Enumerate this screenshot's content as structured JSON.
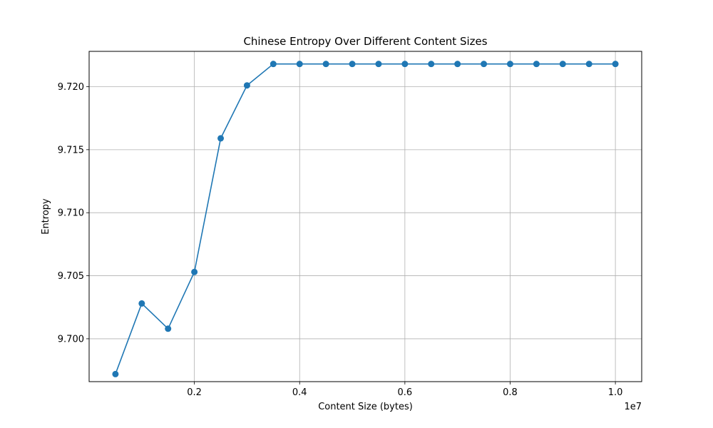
{
  "chart_data": {
    "type": "line",
    "title": "Chinese Entropy Over Different Content Sizes",
    "xlabel": "Content Size (bytes)",
    "ylabel": "Entropy",
    "x_offset_label": "1e7",
    "x_scale_factor": 10000000,
    "xlim": [
      0,
      10500000
    ],
    "ylim": [
      9.6966,
      9.7228
    ],
    "x_ticks": [
      2000000,
      4000000,
      6000000,
      8000000,
      10000000
    ],
    "x_tick_labels": [
      "0.2",
      "0.4",
      "0.6",
      "0.8",
      "1.0"
    ],
    "y_ticks": [
      9.7,
      9.705,
      9.71,
      9.715,
      9.72
    ],
    "y_tick_labels": [
      "9.700",
      "9.705",
      "9.710",
      "9.715",
      "9.720"
    ],
    "grid": true,
    "marker": "circle",
    "color": "#1f77b4",
    "x": [
      500000,
      1000000,
      1500000,
      2000000,
      2500000,
      3000000,
      3500000,
      4000000,
      4500000,
      5000000,
      5500000,
      6000000,
      6500000,
      7000000,
      7500000,
      8000000,
      8500000,
      9000000,
      9500000,
      10000000
    ],
    "series": [
      {
        "values": [
          9.6972,
          9.7028,
          9.7008,
          9.7053,
          9.7159,
          9.7201,
          9.7218,
          9.7218,
          9.7218,
          9.7218,
          9.7218,
          9.7218,
          9.7218,
          9.7218,
          9.7218,
          9.7218,
          9.7218,
          9.7218,
          9.7218,
          9.7218
        ]
      }
    ]
  }
}
